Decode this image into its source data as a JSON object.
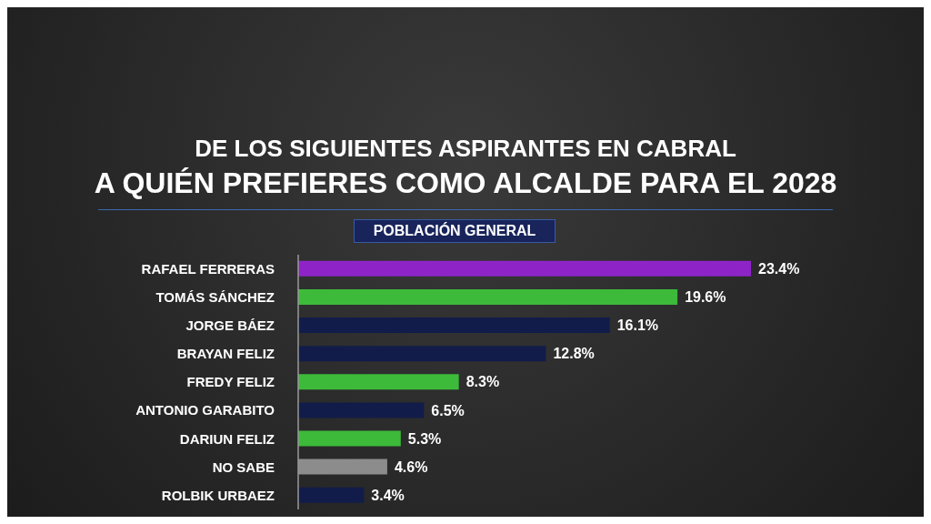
{
  "chart_data": {
    "type": "bar",
    "orientation": "horizontal",
    "title": "DE LOS SIGUIENTES ASPIRANTES EN CABRAL",
    "subtitle": "A QUIÉN PREFIERES COMO ALCALDE PARA EL 2028",
    "annotations": [
      "POBLACIÓN GENERAL"
    ],
    "categories": [
      "RAFAEL FERRERAS",
      "TOMÁS SÁNCHEZ",
      "JORGE BÁEZ",
      "BRAYAN FELIZ",
      "FREDY FELIZ",
      "ANTONIO GARABITO",
      "DARIUN FELIZ",
      "NO SABE",
      "ROLBIK URBAEZ"
    ],
    "values": [
      23.4,
      19.6,
      16.1,
      12.8,
      8.3,
      6.5,
      5.3,
      4.6,
      3.4
    ],
    "colors": [
      "#8e24c8",
      "#3dba3a",
      "#121c4a",
      "#121c4a",
      "#3dba3a",
      "#121c4a",
      "#3dba3a",
      "#8c8c8c",
      "#121c4a"
    ],
    "value_labels": [
      "23.4%",
      "19.6%",
      "16.1%",
      "12.8%",
      "8.3%",
      "6.5%",
      "5.3%",
      "4.6%",
      "3.4%"
    ],
    "grid": false,
    "legend": false
  }
}
